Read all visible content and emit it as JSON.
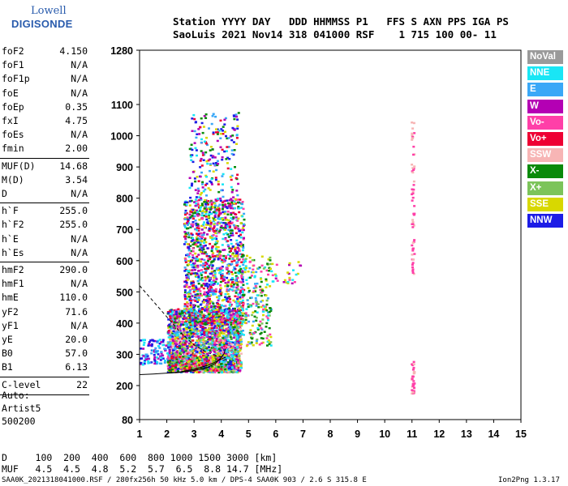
{
  "logo": {
    "line1": "Lowell",
    "line2": "DIGISONDE"
  },
  "header": {
    "line1": "Station YYYY DAY   DDD HHMMSS P1   FFS S AXN PPS IGA PS",
    "line2": "SaoLuis 2021 Nov14 318 041000 RSF    1 715 100 00- 11"
  },
  "params": [
    {
      "k": "foF2",
      "v": "4.150"
    },
    {
      "k": "foF1",
      "v": "N/A"
    },
    {
      "k": "foF1p",
      "v": "N/A"
    },
    {
      "k": "foE",
      "v": "N/A"
    },
    {
      "k": "foEp",
      "v": "0.35"
    },
    {
      "k": "fxI",
      "v": "4.75"
    },
    {
      "k": "foEs",
      "v": "N/A"
    },
    {
      "k": "fmin",
      "v": "2.00"
    },
    {
      "k": "MUF(D)",
      "v": "14.68"
    },
    {
      "k": "M(D)",
      "v": "3.54"
    },
    {
      "k": "D",
      "v": "N/A"
    },
    {
      "k": "h`F",
      "v": "255.0"
    },
    {
      "k": "h`F2",
      "v": "255.0"
    },
    {
      "k": "h`E",
      "v": "N/A"
    },
    {
      "k": "h`Es",
      "v": "N/A"
    },
    {
      "k": "hmF2",
      "v": "290.0"
    },
    {
      "k": "hmF1",
      "v": "N/A"
    },
    {
      "k": "hmE",
      "v": "110.0"
    },
    {
      "k": "yF2",
      "v": "71.6"
    },
    {
      "k": "yF1",
      "v": "N/A"
    },
    {
      "k": "yE",
      "v": "20.0"
    },
    {
      "k": "B0",
      "v": "57.0"
    },
    {
      "k": "B1",
      "v": "6.13"
    },
    {
      "k": "C-level",
      "v": "22"
    }
  ],
  "auto": {
    "l1": "Auto:",
    "l2": "Artist5",
    "l3": "500200"
  },
  "legend": [
    {
      "label": "NoVal",
      "color": "#9a9a9a"
    },
    {
      "label": "NNE",
      "color": "#19e6f5"
    },
    {
      "label": "E",
      "color": "#3aa8f7"
    },
    {
      "label": "W",
      "color": "#b400b4"
    },
    {
      "label": "Vo-",
      "color": "#ff3fa8"
    },
    {
      "label": "Vo+",
      "color": "#ee0033"
    },
    {
      "label": "SSW",
      "color": "#f7b5b5"
    },
    {
      "label": "X-",
      "color": "#0a8a0a"
    },
    {
      "label": "X+",
      "color": "#7cc45a"
    },
    {
      "label": "SSE",
      "color": "#d8d800"
    },
    {
      "label": "NNW",
      "color": "#1c1ce6"
    }
  ],
  "footer": {
    "d_row": "D     100  200  400  600  800 1000 1500 3000 [km]",
    "muf_row": "MUF   4.5  4.5  4.8  5.2  5.7  6.5  8.8 14.7 [MHz]",
    "file": "SAA0K_2021318041000.RSF / 280fx256h 50 kHz 5.0 km / DPS-4 SAA0K 903 / 2.6 S 315.8 E",
    "version": "Ion2Png 1.3.17"
  },
  "chart_data": {
    "type": "scatter",
    "xlim": [
      1,
      15
    ],
    "ylim": [
      80,
      1280
    ],
    "x_ticks": [
      "1",
      "2",
      "3",
      "4",
      "5",
      "6",
      "7",
      "8",
      "9",
      "10",
      "11",
      "12",
      "13",
      "14",
      "15"
    ],
    "y_ticks": [
      "80",
      "200",
      "300",
      "400",
      "500",
      "600",
      "700",
      "800",
      "900",
      "1000",
      "1100",
      "1280"
    ],
    "clusters": [
      {
        "x": [
          2.0,
          4.7
        ],
        "y": [
          245,
          450
        ],
        "weight": 2200,
        "colors": [
          "#3aa8f7",
          "#1c1ce6",
          "#19e6f5",
          "#b400b4",
          "#ff3fa8",
          "#ee0033",
          "#0a8a0a",
          "#7cc45a",
          "#d8d800",
          "#f7b5b5"
        ]
      },
      {
        "x": [
          2.6,
          4.8
        ],
        "y": [
          400,
          800
        ],
        "weight": 1300,
        "colors": [
          "#3aa8f7",
          "#1c1ce6",
          "#19e6f5",
          "#b400b4",
          "#ff3fa8",
          "#ee0033",
          "#0a8a0a",
          "#d8d800"
        ]
      },
      {
        "x": [
          2.8,
          4.6
        ],
        "y": [
          750,
          1080
        ],
        "weight": 260,
        "colors": [
          "#3aa8f7",
          "#1c1ce6",
          "#19e6f5",
          "#b400b4",
          "#ee0033",
          "#0a8a0a",
          "#d8d800"
        ]
      },
      {
        "x": [
          4.5,
          5.8
        ],
        "y": [
          330,
          620
        ],
        "weight": 260,
        "colors": [
          "#d8d800",
          "#0a8a0a",
          "#7cc45a",
          "#19e6f5",
          "#ff3fa8",
          "#3aa8f7"
        ]
      },
      {
        "x": [
          5.8,
          7.0
        ],
        "y": [
          530,
          600
        ],
        "weight": 30,
        "colors": [
          "#d8d800",
          "#ff3fa8",
          "#19e6f5",
          "#b400b4"
        ]
      },
      {
        "x": [
          1.0,
          2.1
        ],
        "y": [
          270,
          350
        ],
        "weight": 120,
        "colors": [
          "#1c1ce6",
          "#3aa8f7",
          "#b400b4",
          "#19e6f5"
        ]
      },
      {
        "x": [
          2.0,
          4.0
        ],
        "y": [
          250,
          300
        ],
        "weight": 180,
        "colors": [
          "#0a8a0a",
          "#7cc45a",
          "#ee0033",
          "#ff3fa8",
          "#d8d800"
        ]
      },
      {
        "x": [
          10.95,
          11.05
        ],
        "y": [
          560,
          1050
        ],
        "weight": 60,
        "colors": [
          "#f7b5b5",
          "#ff3fa8"
        ]
      },
      {
        "x": [
          10.95,
          11.05
        ],
        "y": [
          175,
          280
        ],
        "weight": 40,
        "colors": [
          "#f7b5b5",
          "#ff3fa8"
        ]
      }
    ],
    "traces": {
      "virtual_height": [
        [
          1.0,
          235
        ],
        [
          1.5,
          237
        ],
        [
          2.0,
          240
        ],
        [
          2.5,
          242
        ],
        [
          3.0,
          248
        ],
        [
          3.5,
          258
        ],
        [
          3.8,
          272
        ],
        [
          4.0,
          290
        ],
        [
          4.1,
          302
        ],
        [
          4.15,
          318
        ]
      ],
      "profile": [
        [
          2.0,
          240
        ],
        [
          2.5,
          244
        ],
        [
          3.0,
          252
        ],
        [
          3.5,
          265
        ],
        [
          3.8,
          276
        ],
        [
          4.0,
          285
        ],
        [
          4.15,
          290
        ]
      ],
      "profile_dashed": [
        [
          1.0,
          520
        ],
        [
          1.5,
          470
        ],
        [
          2.0,
          420
        ],
        [
          2.5,
          370
        ],
        [
          3.0,
          330
        ],
        [
          3.5,
          305
        ],
        [
          4.0,
          292
        ],
        [
          4.15,
          290
        ]
      ]
    }
  }
}
